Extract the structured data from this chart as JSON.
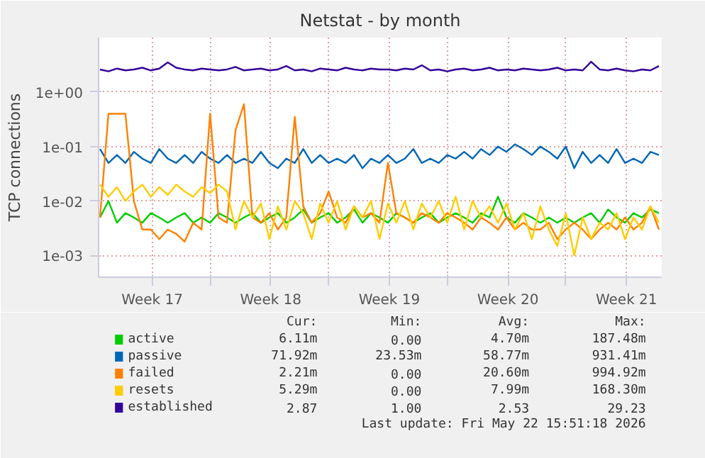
{
  "chart_data": {
    "type": "line",
    "title": "Netstat - by month",
    "ylabel": "TCP connections",
    "log": "y",
    "grid": true,
    "legend": "bottom",
    "xlim": [
      "2026-04-20T10:00",
      "2026-05-23T16:00"
    ],
    "xticks": [
      {
        "value": "2026-04-23T14:00",
        "label": "Week 17"
      },
      {
        "value": "2026-04-27",
        "label": null
      },
      {
        "value": "2026-04-30T14:00",
        "label": "Week 18"
      },
      {
        "value": "2026-05-04",
        "label": null
      },
      {
        "value": "2026-05-07T14:00",
        "label": "Week 19"
      },
      {
        "value": "2026-05-11",
        "label": null
      },
      {
        "value": "2026-05-14T14:00",
        "label": "Week 20"
      },
      {
        "value": "2026-05-18",
        "label": null
      },
      {
        "value": "2026-05-21T14:00",
        "label": "Week 21"
      }
    ],
    "ylim": [
      0.0004,
      10
    ],
    "yticks": [
      {
        "value": 0.001,
        "label": "1e-03"
      },
      {
        "value": 0.01,
        "label": "1e-02"
      },
      {
        "value": 0.1,
        "label": "1e-01"
      },
      {
        "value": 1,
        "label": "1e+00"
      }
    ],
    "x": [
      "2026-04-20T12:00",
      "2026-04-21",
      "2026-04-21T12:00",
      "2026-04-22",
      "2026-04-22T12:00",
      "2026-04-23",
      "2026-04-23T12:00",
      "2026-04-24",
      "2026-04-24T12:00",
      "2026-04-25",
      "2026-04-25T12:00",
      "2026-04-26",
      "2026-04-26T12:00",
      "2026-04-27",
      "2026-04-27T12:00",
      "2026-04-28",
      "2026-04-28T12:00",
      "2026-04-29",
      "2026-04-29T12:00",
      "2026-04-30",
      "2026-04-30T12:00",
      "2026-05-01",
      "2026-05-01T12:00",
      "2026-05-02",
      "2026-05-02T12:00",
      "2026-05-03",
      "2026-05-03T12:00",
      "2026-05-04",
      "2026-05-04T12:00",
      "2026-05-05",
      "2026-05-05T12:00",
      "2026-05-06",
      "2026-05-06T12:00",
      "2026-05-07",
      "2026-05-07T12:00",
      "2026-05-08",
      "2026-05-08T12:00",
      "2026-05-09",
      "2026-05-09T12:00",
      "2026-05-10",
      "2026-05-10T12:00",
      "2026-05-11",
      "2026-05-11T12:00",
      "2026-05-12",
      "2026-05-12T12:00",
      "2026-05-13",
      "2026-05-13T12:00",
      "2026-05-14",
      "2026-05-14T12:00",
      "2026-05-15",
      "2026-05-15T12:00",
      "2026-05-16",
      "2026-05-16T12:00",
      "2026-05-17",
      "2026-05-17T12:00",
      "2026-05-18",
      "2026-05-18T12:00",
      "2026-05-19",
      "2026-05-19T12:00",
      "2026-05-20",
      "2026-05-20T12:00",
      "2026-05-21",
      "2026-05-21T12:00",
      "2026-05-22",
      "2026-05-22T12:00",
      "2026-05-23",
      "2026-05-23T12:00"
    ],
    "series": [
      {
        "name": "active",
        "color": "#00cc00",
        "values": [
          0.005,
          0.01,
          0.004,
          0.006,
          0.005,
          0.004,
          0.006,
          0.005,
          0.004,
          0.005,
          0.006,
          0.004,
          0.005,
          0.004,
          0.006,
          0.005,
          0.004,
          0.005,
          0.006,
          0.004,
          0.005,
          0.006,
          0.004,
          0.005,
          0.007,
          0.004,
          0.005,
          0.006,
          0.004,
          0.005,
          0.007,
          0.004,
          0.006,
          0.005,
          0.004,
          0.006,
          0.005,
          0.004,
          0.005,
          0.006,
          0.004,
          0.005,
          0.006,
          0.005,
          0.004,
          0.006,
          0.005,
          0.012,
          0.005,
          0.004,
          0.006,
          0.005,
          0.004,
          0.005,
          0.004,
          0.005,
          0.004,
          0.005,
          0.006,
          0.004,
          0.007,
          0.005,
          0.004,
          0.006,
          0.005,
          0.007,
          0.006
        ]
      },
      {
        "name": "passive",
        "color": "#0066b3",
        "values": [
          0.09,
          0.05,
          0.07,
          0.05,
          0.08,
          0.06,
          0.05,
          0.09,
          0.06,
          0.05,
          0.07,
          0.05,
          0.08,
          0.06,
          0.05,
          0.07,
          0.05,
          0.06,
          0.05,
          0.08,
          0.05,
          0.04,
          0.06,
          0.05,
          0.09,
          0.05,
          0.07,
          0.05,
          0.06,
          0.05,
          0.07,
          0.04,
          0.06,
          0.05,
          0.07,
          0.05,
          0.06,
          0.09,
          0.05,
          0.06,
          0.05,
          0.07,
          0.06,
          0.08,
          0.06,
          0.09,
          0.07,
          0.1,
          0.08,
          0.11,
          0.09,
          0.07,
          0.1,
          0.08,
          0.06,
          0.1,
          0.04,
          0.08,
          0.05,
          0.07,
          0.05,
          0.09,
          0.05,
          0.06,
          0.05,
          0.08,
          0.07
        ]
      },
      {
        "name": "failed",
        "color": "#ff8000",
        "values": [
          0.005,
          0.4,
          0.4,
          0.4,
          0.01,
          0.003,
          0.003,
          0.002,
          0.003,
          0.0025,
          0.0018,
          0.004,
          0.003,
          0.4,
          0.005,
          0.004,
          0.2,
          0.6,
          0.005,
          0.004,
          0.006,
          0.003,
          0.005,
          0.35,
          0.008,
          0.004,
          0.006,
          0.015,
          0.005,
          0.004,
          0.008,
          0.005,
          0.006,
          0.004,
          0.05,
          0.006,
          0.005,
          0.004,
          0.006,
          0.005,
          0.004,
          0.006,
          0.005,
          0.004,
          0.003,
          0.005,
          0.004,
          0.003,
          0.005,
          0.003,
          0.004,
          0.003,
          0.003,
          0.004,
          0.002,
          0.003,
          0.004,
          0.003,
          0.002,
          0.003,
          0.004,
          0.003,
          0.005,
          0.003,
          0.004,
          0.008,
          0.003
        ]
      },
      {
        "name": "resets",
        "color": "#ffcc00",
        "values": [
          0.02,
          0.012,
          0.018,
          0.01,
          0.015,
          0.02,
          0.012,
          0.018,
          0.013,
          0.02,
          0.015,
          0.012,
          0.018,
          0.014,
          0.02,
          0.015,
          0.003,
          0.01,
          0.005,
          0.009,
          0.002,
          0.008,
          0.003,
          0.01,
          0.006,
          0.002,
          0.009,
          0.004,
          0.01,
          0.003,
          0.008,
          0.005,
          0.01,
          0.002,
          0.009,
          0.004,
          0.01,
          0.003,
          0.009,
          0.005,
          0.01,
          0.004,
          0.012,
          0.003,
          0.01,
          0.005,
          0.008,
          0.004,
          0.009,
          0.003,
          0.006,
          0.002,
          0.008,
          0.003,
          0.0015,
          0.006,
          0.001,
          0.005,
          0.002,
          0.004,
          0.003,
          0.006,
          0.002,
          0.005,
          0.003,
          0.008,
          0.004
        ]
      },
      {
        "name": "established",
        "color": "#330099",
        "values": [
          2.6,
          2.4,
          2.7,
          2.5,
          2.6,
          2.8,
          2.5,
          2.7,
          3.5,
          2.8,
          2.6,
          2.5,
          2.7,
          2.6,
          2.5,
          2.6,
          2.9,
          2.5,
          2.6,
          2.7,
          2.5,
          2.6,
          3.0,
          2.5,
          2.6,
          2.4,
          2.7,
          2.6,
          2.5,
          2.8,
          2.6,
          2.5,
          2.7,
          2.6,
          2.6,
          2.5,
          2.7,
          2.6,
          3.1,
          2.5,
          2.6,
          2.4,
          2.6,
          2.7,
          2.5,
          2.6,
          2.8,
          2.5,
          2.6,
          2.5,
          2.7,
          2.6,
          2.5,
          2.6,
          2.8,
          2.5,
          2.6,
          2.5,
          3.6,
          2.6,
          2.5,
          2.7,
          2.5,
          2.4,
          2.6,
          2.5,
          3.0
        ]
      }
    ],
    "annotations": [
      "Cur:",
      "Min:",
      "Avg:",
      "Max:",
      "6.11m",
      "0.00",
      "4.70m",
      "187.48m",
      "71.92m",
      "23.53m",
      "58.77m",
      "931.41m",
      "2.21m",
      "0.00",
      "20.60m",
      "994.92m",
      "5.29m",
      "0.00",
      "7.99m",
      "168.30m",
      "2.87",
      "1.00",
      "2.53",
      "29.23",
      "Last update: Fri May 22 15:51:18 2026"
    ]
  }
}
